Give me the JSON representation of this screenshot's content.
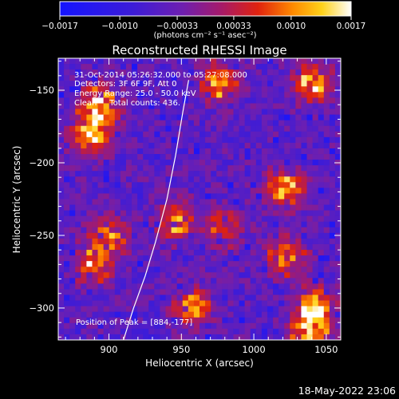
{
  "chart_data": {
    "type": "heatmap",
    "title": "Reconstructed RHESSI Image",
    "xlabel": "Heliocentric X (arcsec)",
    "ylabel": "Heliocentric Y (arcsec)",
    "xlim": [
      865,
      1060
    ],
    "ylim": [
      -322,
      -128
    ],
    "x_ticks": [
      900,
      950,
      1000,
      1050
    ],
    "x_tick_labels": [
      "900",
      "950",
      "1000",
      "1050"
    ],
    "y_ticks": [
      -150,
      -200,
      -250,
      -300
    ],
    "y_tick_labels": [
      "−150",
      "−200",
      "−250",
      "−300"
    ],
    "colorbar": {
      "colormap": "blue-purple-red-yellow-white",
      "range": [
        -0.0017,
        0.0017
      ],
      "ticks": [
        -0.0017,
        -0.001,
        -0.00033,
        0.00033,
        0.001,
        0.0017
      ],
      "tick_labels": [
        "−0.0017",
        "−0.0010",
        "−0.00033",
        "0.00033",
        "0.0010",
        "0.0017"
      ],
      "units": "(photons cm⁻² s⁻¹ asec⁻²)"
    },
    "annotations": [
      "31-Oct-2014 05:26:32.000 to 05:27:08.000",
      "Detectors: 3F 6F 9F, Att 0",
      "Energy Range: 25.0 - 50.0 keV",
      "Clean     Total counts: 436."
    ],
    "peak_label": "Position of Peak = [884,-177]",
    "limb_curve": [
      [
        910,
        -322
      ],
      [
        917,
        -300
      ],
      [
        925,
        -278
      ],
      [
        932,
        -255
      ],
      [
        940,
        -225
      ],
      [
        946,
        -195
      ],
      [
        951,
        -165
      ],
      [
        955,
        -143
      ]
    ],
    "bright_regions": [
      {
        "x": 893,
        "y": -160,
        "level": 1.0
      },
      {
        "x": 888,
        "y": -182,
        "level": 0.95
      },
      {
        "x": 975,
        "y": -145,
        "level": 0.85
      },
      {
        "x": 1040,
        "y": -145,
        "level": 0.9
      },
      {
        "x": 947,
        "y": -240,
        "level": 0.85
      },
      {
        "x": 1022,
        "y": -218,
        "level": 0.8
      },
      {
        "x": 1022,
        "y": -265,
        "level": 0.85
      },
      {
        "x": 1042,
        "y": -300,
        "level": 0.9
      },
      {
        "x": 1038,
        "y": -318,
        "level": 0.95
      },
      {
        "x": 890,
        "y": -270,
        "level": 0.75
      },
      {
        "x": 900,
        "y": -250,
        "level": 0.7
      },
      {
        "x": 958,
        "y": -300,
        "level": 0.75
      },
      {
        "x": 980,
        "y": -245,
        "level": 0.55
      }
    ]
  },
  "timestamp": "18-May-2022 23:06"
}
